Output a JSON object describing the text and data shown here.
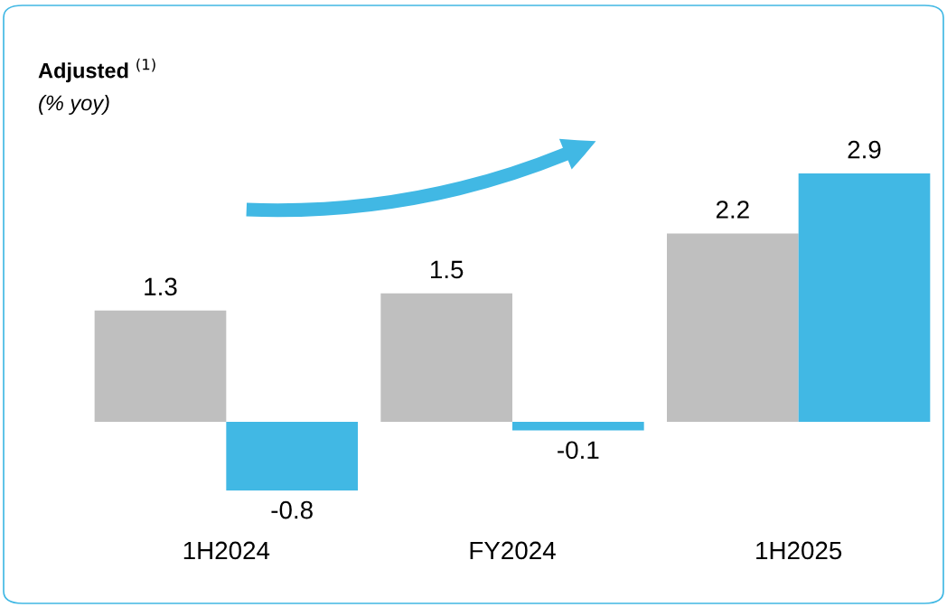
{
  "chart_data": {
    "type": "bar",
    "title": "Adjusted $^{(1)}$",
    "subtitle": "(% yoy)",
    "categories": [
      "1H2024",
      "FY2024",
      "1H2025"
    ],
    "series": [
      {
        "color": "#bfbfbf",
        "values": [
          1.3,
          1.5,
          2.2
        ]
      },
      {
        "color": "#41b8e4",
        "values": [
          -0.8,
          -0.1,
          2.9
        ]
      }
    ],
    "data_labels": true,
    "grid": false,
    "legend": false
  }
}
